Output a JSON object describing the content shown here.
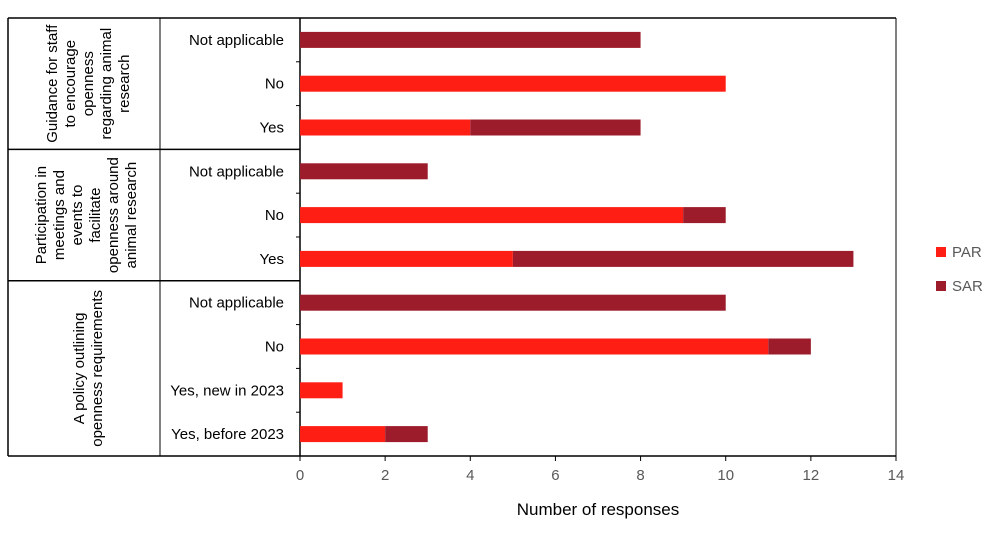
{
  "chart_data": {
    "type": "bar",
    "orientation": "horizontal",
    "stacked": true,
    "xlabel": "Number of responses",
    "xlim": [
      0,
      14
    ],
    "xticks": [
      0,
      2,
      4,
      6,
      8,
      10,
      12,
      14
    ],
    "grid": false,
    "legend_position": "right",
    "groups": [
      {
        "label": [
          "Guidance for staff",
          "to encourage",
          "openness",
          "regarding animal",
          "research"
        ],
        "categories": [
          "Not applicable",
          "No",
          "Yes"
        ]
      },
      {
        "label": [
          "Participation in",
          "meetings and",
          "events to",
          "facilitate",
          "openness around",
          "animal research"
        ],
        "categories": [
          "Not applicable",
          "No",
          "Yes"
        ]
      },
      {
        "label": [
          "A policy outlining",
          "openness requirements"
        ],
        "categories": [
          "Not applicable",
          "No",
          "Yes, new in 2023",
          "Yes, before 2023"
        ]
      }
    ],
    "series": [
      {
        "name": "PAR",
        "color": "#FF1E14",
        "values": [
          0,
          10,
          4,
          0,
          9,
          5,
          0,
          11,
          1,
          2
        ]
      },
      {
        "name": "SAR",
        "color": "#9C1C2C",
        "values": [
          8,
          0,
          4,
          3,
          1,
          8,
          10,
          1,
          0,
          1
        ]
      }
    ]
  }
}
